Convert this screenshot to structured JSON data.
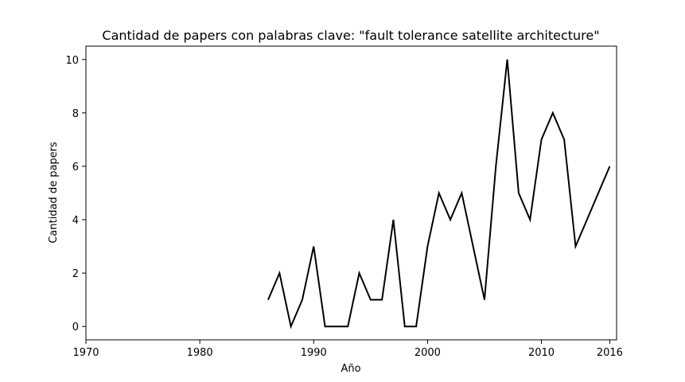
{
  "chart_data": {
    "type": "line",
    "title": "Cantidad de papers con palabras clave: \"fault tolerance satellite architecture\"",
    "xlabel": "Año",
    "ylabel": "Cantidad de papers",
    "xlim": [
      1970,
      2016.6
    ],
    "ylim": [
      -0.5,
      10.5
    ],
    "xticks": [
      1970,
      1980,
      1990,
      2000,
      2010,
      2016
    ],
    "yticks": [
      0,
      2,
      4,
      6,
      8,
      10
    ],
    "grid": false,
    "line_color": "#000000",
    "series": [
      {
        "x": [
          1986,
          1987,
          1988,
          1989,
          1990,
          1991,
          1992,
          1993,
          1994,
          1995,
          1996,
          1997,
          1998,
          1999,
          2000,
          2001,
          2002,
          2003,
          2005,
          2006,
          2007,
          2008,
          2009,
          2010,
          2011,
          2012,
          2013,
          2016
        ],
        "y": [
          1,
          2,
          0,
          1,
          3,
          0,
          0,
          0,
          2,
          1,
          1,
          4,
          0,
          0,
          3,
          5,
          4,
          5,
          1,
          6,
          10,
          5,
          4,
          7,
          8,
          7,
          3,
          6
        ]
      }
    ]
  }
}
